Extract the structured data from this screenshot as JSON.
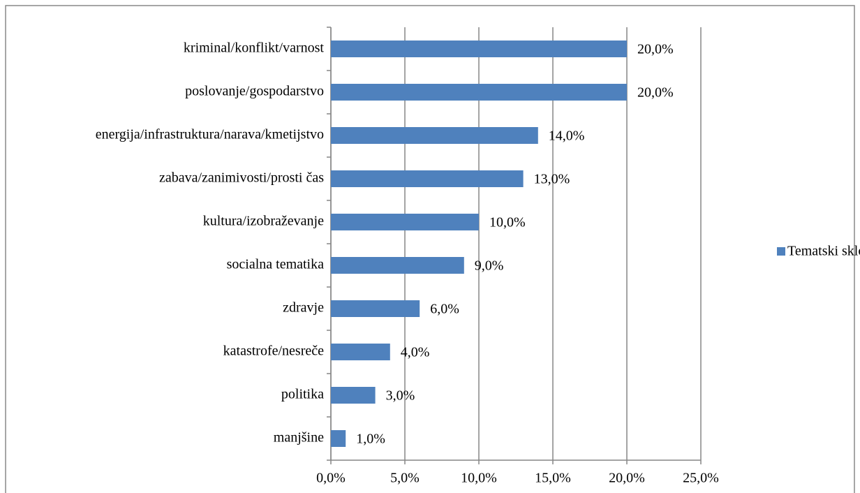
{
  "chart_data": {
    "type": "bar",
    "orientation": "horizontal",
    "categories": [
      "kriminal/konflikt/varnost",
      "poslovanje/gospodarstvo",
      "energija/infrastruktura/narava/kmetijstvo",
      "zabava/zanimivosti/prosti čas",
      "kultura/izobraževanje",
      "socialna tematika",
      "zdravje",
      "katastrofe/nesreče",
      "politika",
      "manjšine"
    ],
    "series": [
      {
        "name": "Tematski sklopi",
        "color": "#4f81bd",
        "values": [
          20,
          20,
          14,
          13,
          10,
          9,
          6,
          4,
          3,
          1
        ],
        "value_labels": [
          "20,0%",
          "20,0%",
          "14,0%",
          "13,0%",
          "10,0%",
          "9,0%",
          "6,0%",
          "4,0%",
          "3,0%",
          "1,0%"
        ]
      }
    ],
    "xlim": [
      0,
      25
    ],
    "xticks": [
      {
        "value": 0,
        "label": "0,0%"
      },
      {
        "value": 5,
        "label": "5,0%"
      },
      {
        "value": 10,
        "label": "10,0%"
      },
      {
        "value": 15,
        "label": "15,0%"
      },
      {
        "value": 20,
        "label": "20,0%"
      },
      {
        "value": 25,
        "label": "25,0%"
      }
    ],
    "grid": true,
    "legend": "right"
  }
}
